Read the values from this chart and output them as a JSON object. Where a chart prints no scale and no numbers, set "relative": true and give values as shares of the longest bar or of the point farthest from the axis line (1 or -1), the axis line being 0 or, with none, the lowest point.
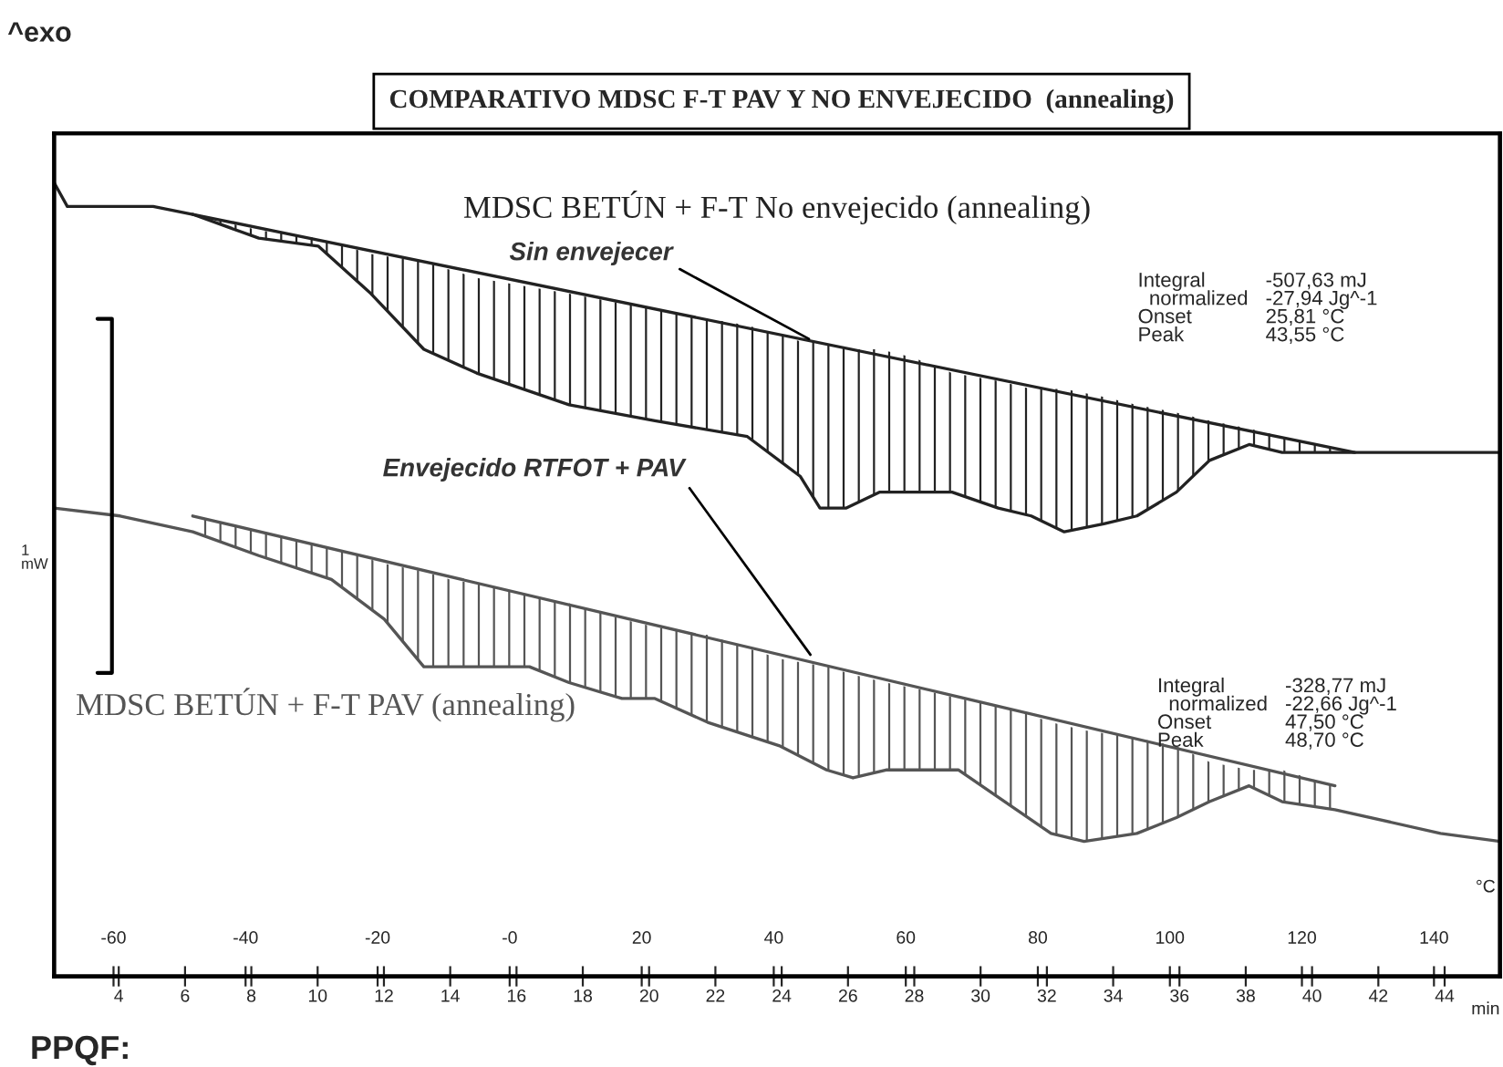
{
  "chart_data": {
    "type": "line",
    "title": "COMPARATIVO MDSC F-T PAV Y NO ENVEJECIDO  (annealing)",
    "relative": true,
    "xlabel": "°C",
    "x2label": "min",
    "xlim": [
      -69,
      150
    ],
    "xticks": [
      -60,
      -40,
      -20,
      {
        "value": 0,
        "label": "-0"
      },
      20,
      40,
      60,
      80,
      100,
      120,
      140
    ],
    "x2lim": [
      2.05,
      45.67
    ],
    "x2ticks": [
      4,
      6,
      8,
      10,
      12,
      14,
      16,
      18,
      20,
      22,
      24,
      26,
      28,
      30,
      32,
      34,
      36,
      38,
      40,
      42,
      44
    ],
    "grid": false,
    "legend": false,
    "marker": "none",
    "line_style": "solid",
    "series": [
      {
        "name": "MDSC BETÚN + F-T No envejecido (annealing)",
        "color": "#222222",
        "x": [
          -69,
          -67,
          -54,
          -48,
          -38,
          -29,
          -21,
          -13,
          -5,
          9,
          22,
          36,
          44,
          47,
          51,
          56,
          61,
          67,
          74,
          79,
          84,
          90,
          95,
          101,
          106,
          112,
          117,
          122,
          128,
          150
        ],
        "values": [
          1.0,
          0.97,
          0.97,
          0.96,
          0.93,
          0.92,
          0.86,
          0.79,
          0.76,
          0.72,
          0.7,
          0.68,
          0.63,
          0.59,
          0.59,
          0.61,
          0.61,
          0.61,
          0.59,
          0.58,
          0.56,
          0.57,
          0.58,
          0.61,
          0.65,
          0.67,
          0.66,
          0.66,
          0.66,
          0.66
        ],
        "lower": [
          null,
          null,
          null,
          0.96,
          0.93,
          0.92,
          0.86,
          0.79,
          0.76,
          0.72,
          0.7,
          0.68,
          0.63,
          0.59,
          0.59,
          0.61,
          0.61,
          0.61,
          0.59,
          0.58,
          0.56,
          0.57,
          0.58,
          0.61,
          0.65,
          0.67,
          0.66,
          0.66,
          0.66,
          null
        ],
        "upper": [
          null,
          null,
          null,
          0.96,
          0.94,
          0.93,
          0.91,
          0.9,
          0.88,
          0.86,
          0.84,
          0.82,
          0.8,
          0.8,
          0.79,
          0.79,
          0.78,
          0.76,
          0.75,
          0.74,
          0.74,
          0.73,
          0.72,
          0.71,
          0.7,
          0.69,
          0.68,
          0.67,
          0.66,
          null
        ]
      },
      {
        "type": "line",
        "color": "#222222",
        "x": [
          -48,
          128
        ],
        "values": [
          0.96,
          0.66
        ]
      },
      {
        "name": "MDSC BETÚN + F-T PAV (annealing)",
        "color": "#555555",
        "x": [
          -69,
          -59,
          -48,
          -38,
          -27,
          -19,
          -13,
          -9,
          -2,
          3,
          9,
          17,
          22,
          30,
          41,
          48,
          52,
          57,
          63,
          68,
          75,
          82,
          87,
          95,
          101,
          106,
          112,
          117,
          125,
          141,
          150
        ],
        "values": [
          0.59,
          0.58,
          0.56,
          0.53,
          0.5,
          0.45,
          0.39,
          0.39,
          0.39,
          0.39,
          0.37,
          0.35,
          0.35,
          0.32,
          0.29,
          0.26,
          0.25,
          0.26,
          0.26,
          0.26,
          0.22,
          0.18,
          0.17,
          0.18,
          0.2,
          0.22,
          0.24,
          0.22,
          0.21,
          0.18,
          0.17
        ],
        "lower": [
          null,
          null,
          0.56,
          0.53,
          0.5,
          0.45,
          0.39,
          0.39,
          0.39,
          0.39,
          0.37,
          0.35,
          0.35,
          0.32,
          0.29,
          0.26,
          0.25,
          0.26,
          0.26,
          0.26,
          0.22,
          0.18,
          0.17,
          0.18,
          0.2,
          0.22,
          0.24,
          0.22,
          0.21,
          null,
          null
        ],
        "upper": [
          null,
          null,
          0.58,
          0.56,
          0.54,
          0.52,
          0.51,
          0.5,
          0.49,
          0.48,
          0.47,
          0.45,
          0.44,
          0.43,
          0.4,
          0.39,
          0.38,
          0.37,
          0.36,
          0.35,
          0.34,
          0.32,
          0.31,
          0.3,
          0.29,
          0.27,
          0.26,
          0.26,
          0.24,
          null,
          null
        ]
      },
      {
        "type": "line",
        "color": "#555555",
        "x": [
          -48,
          125
        ],
        "values": [
          0.58,
          0.24
        ]
      }
    ],
    "annotations": [
      "^exo",
      "Integral\n  normalized\nOnset\nPeak",
      "-507,63 mJ\n-27,94 Jg^-1\n25,81 °C\n43,55 °C",
      "Integral\n  normalized\nOnset\nPeak",
      "-328,77 mJ\n-22,66 Jg^-1\n47,50 °C\n48,70 °C",
      "1\nmW",
      {
        "text": "Sin envejecer",
        "x": 46,
        "y": 0.8
      },
      {
        "text": "Envejecido RTFOT + PAV",
        "x": 46,
        "y": 0.4
      },
      "PPQF:"
    ]
  }
}
